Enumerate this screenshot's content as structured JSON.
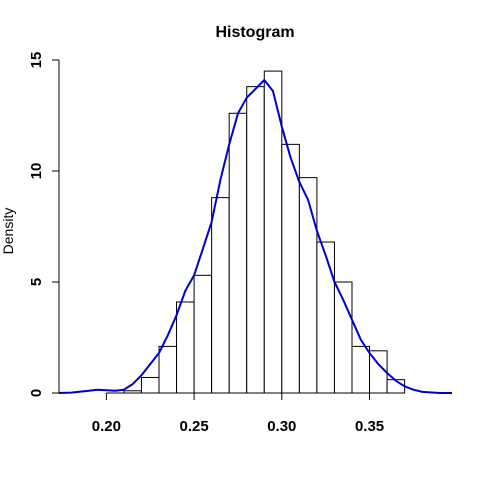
{
  "chart_data": {
    "type": "bar",
    "title": "Histogram",
    "xlabel": "",
    "ylabel": "Density",
    "xlim": [
      0.173,
      0.397
    ],
    "ylim": [
      0,
      15
    ],
    "x_ticks": [
      0.2,
      0.25,
      0.3,
      0.35
    ],
    "x_tick_labels": [
      "0.20",
      "0.25",
      "0.30",
      "0.35"
    ],
    "y_ticks": [
      0,
      5,
      10,
      15
    ],
    "y_tick_labels": [
      "0",
      "5",
      "10",
      "15"
    ],
    "grid": false,
    "bins": [
      {
        "start": 0.21,
        "end": 0.22,
        "density": 0.1
      },
      {
        "start": 0.22,
        "end": 0.23,
        "density": 0.7
      },
      {
        "start": 0.23,
        "end": 0.24,
        "density": 2.1
      },
      {
        "start": 0.24,
        "end": 0.25,
        "density": 4.1
      },
      {
        "start": 0.25,
        "end": 0.26,
        "density": 5.3
      },
      {
        "start": 0.26,
        "end": 0.27,
        "density": 8.8
      },
      {
        "start": 0.27,
        "end": 0.28,
        "density": 12.6
      },
      {
        "start": 0.28,
        "end": 0.29,
        "density": 13.8
      },
      {
        "start": 0.29,
        "end": 0.3,
        "density": 14.5
      },
      {
        "start": 0.3,
        "end": 0.31,
        "density": 11.2
      },
      {
        "start": 0.31,
        "end": 0.32,
        "density": 9.7
      },
      {
        "start": 0.32,
        "end": 0.33,
        "density": 6.8
      },
      {
        "start": 0.33,
        "end": 0.34,
        "density": 5.0
      },
      {
        "start": 0.34,
        "end": 0.35,
        "density": 2.1
      },
      {
        "start": 0.35,
        "end": 0.36,
        "density": 1.9
      },
      {
        "start": 0.36,
        "end": 0.37,
        "density": 0.6
      }
    ],
    "density_curve": {
      "color": "#0000cc",
      "x": [
        0.173,
        0.18,
        0.19,
        0.195,
        0.2,
        0.205,
        0.21,
        0.215,
        0.22,
        0.225,
        0.23,
        0.235,
        0.24,
        0.245,
        0.25,
        0.255,
        0.26,
        0.265,
        0.27,
        0.275,
        0.28,
        0.285,
        0.29,
        0.295,
        0.3,
        0.305,
        0.31,
        0.315,
        0.32,
        0.325,
        0.33,
        0.335,
        0.34,
        0.345,
        0.35,
        0.355,
        0.36,
        0.365,
        0.37,
        0.375,
        0.38,
        0.39,
        0.397
      ],
      "y": [
        0.0,
        0.02,
        0.1,
        0.15,
        0.12,
        0.1,
        0.15,
        0.4,
        0.8,
        1.3,
        1.8,
        2.6,
        3.5,
        4.6,
        5.3,
        6.5,
        7.7,
        9.6,
        11.2,
        12.6,
        13.3,
        13.7,
        14.1,
        13.6,
        12.0,
        10.6,
        9.5,
        8.7,
        7.3,
        6.2,
        5.0,
        4.2,
        3.3,
        2.4,
        1.8,
        1.3,
        0.9,
        0.55,
        0.3,
        0.15,
        0.05,
        0.0,
        0.0
      ]
    }
  }
}
